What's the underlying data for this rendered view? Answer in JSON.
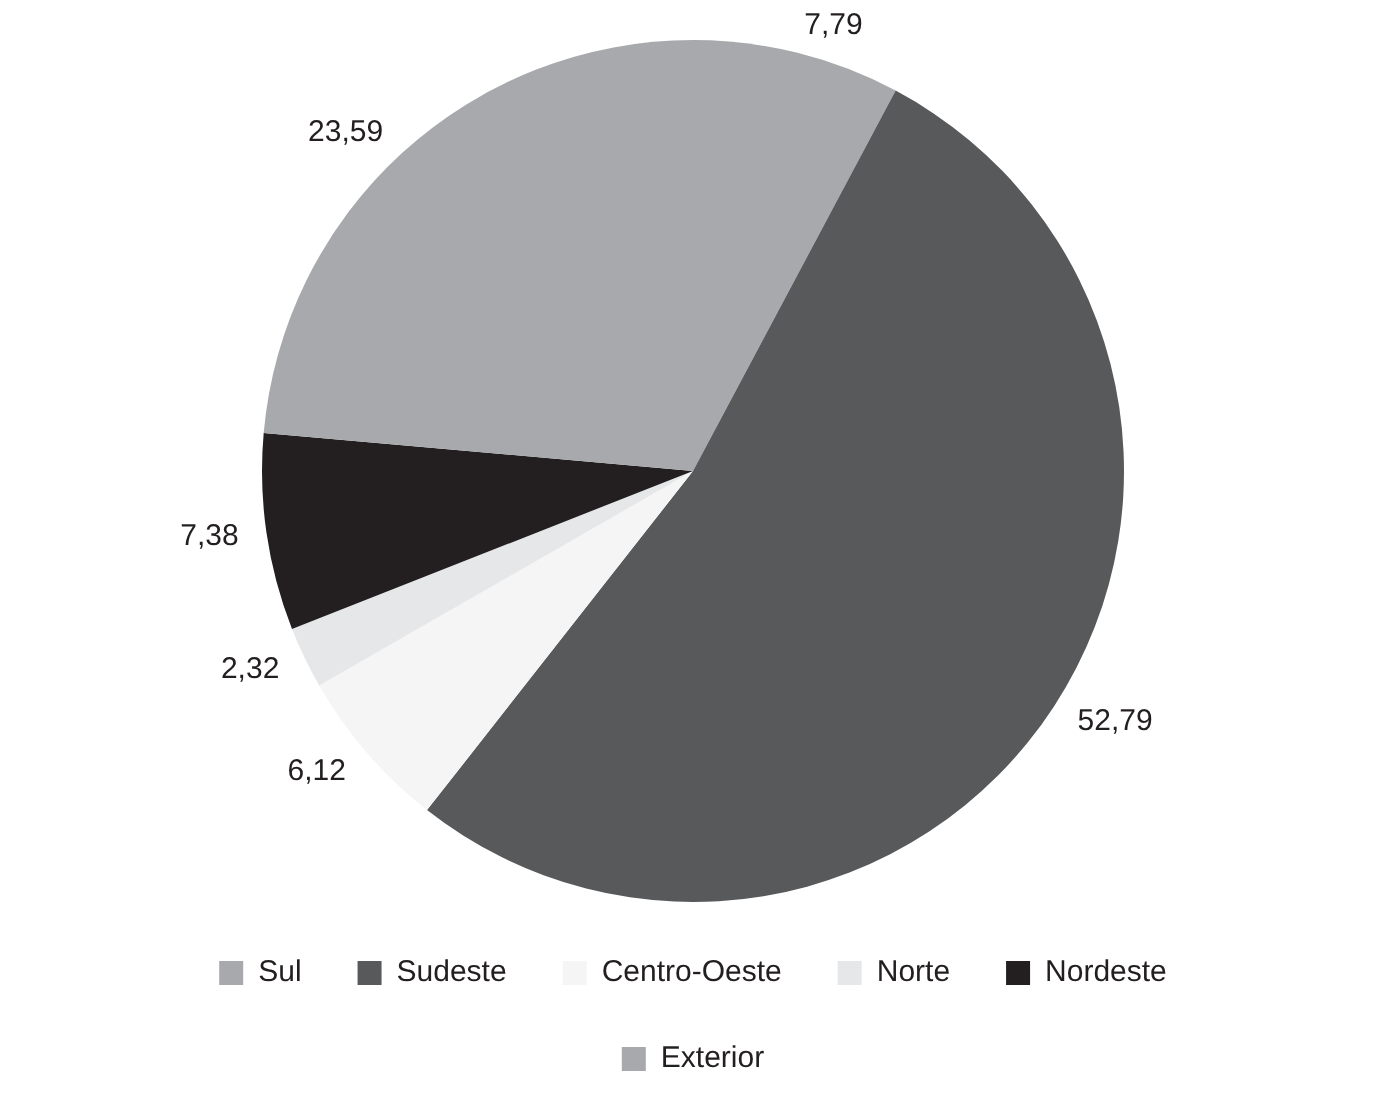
{
  "chart_data": {
    "type": "pie",
    "categories": [
      "Sul",
      "Sudeste",
      "Centro-Oeste",
      "Norte",
      "Nordeste",
      "Exterior"
    ],
    "values": [
      7.79,
      52.79,
      6.12,
      2.32,
      7.38,
      23.59
    ],
    "colors": [
      "#a7a9ac",
      "#58595b",
      "#f5f5f5",
      "#e6e7e8",
      "#231f20",
      "#a7a9ac"
    ],
    "value_labels": [
      "7,79",
      "52,79",
      "6,12",
      "2,32",
      "7,38",
      "23,59"
    ],
    "legend": "bottom"
  }
}
